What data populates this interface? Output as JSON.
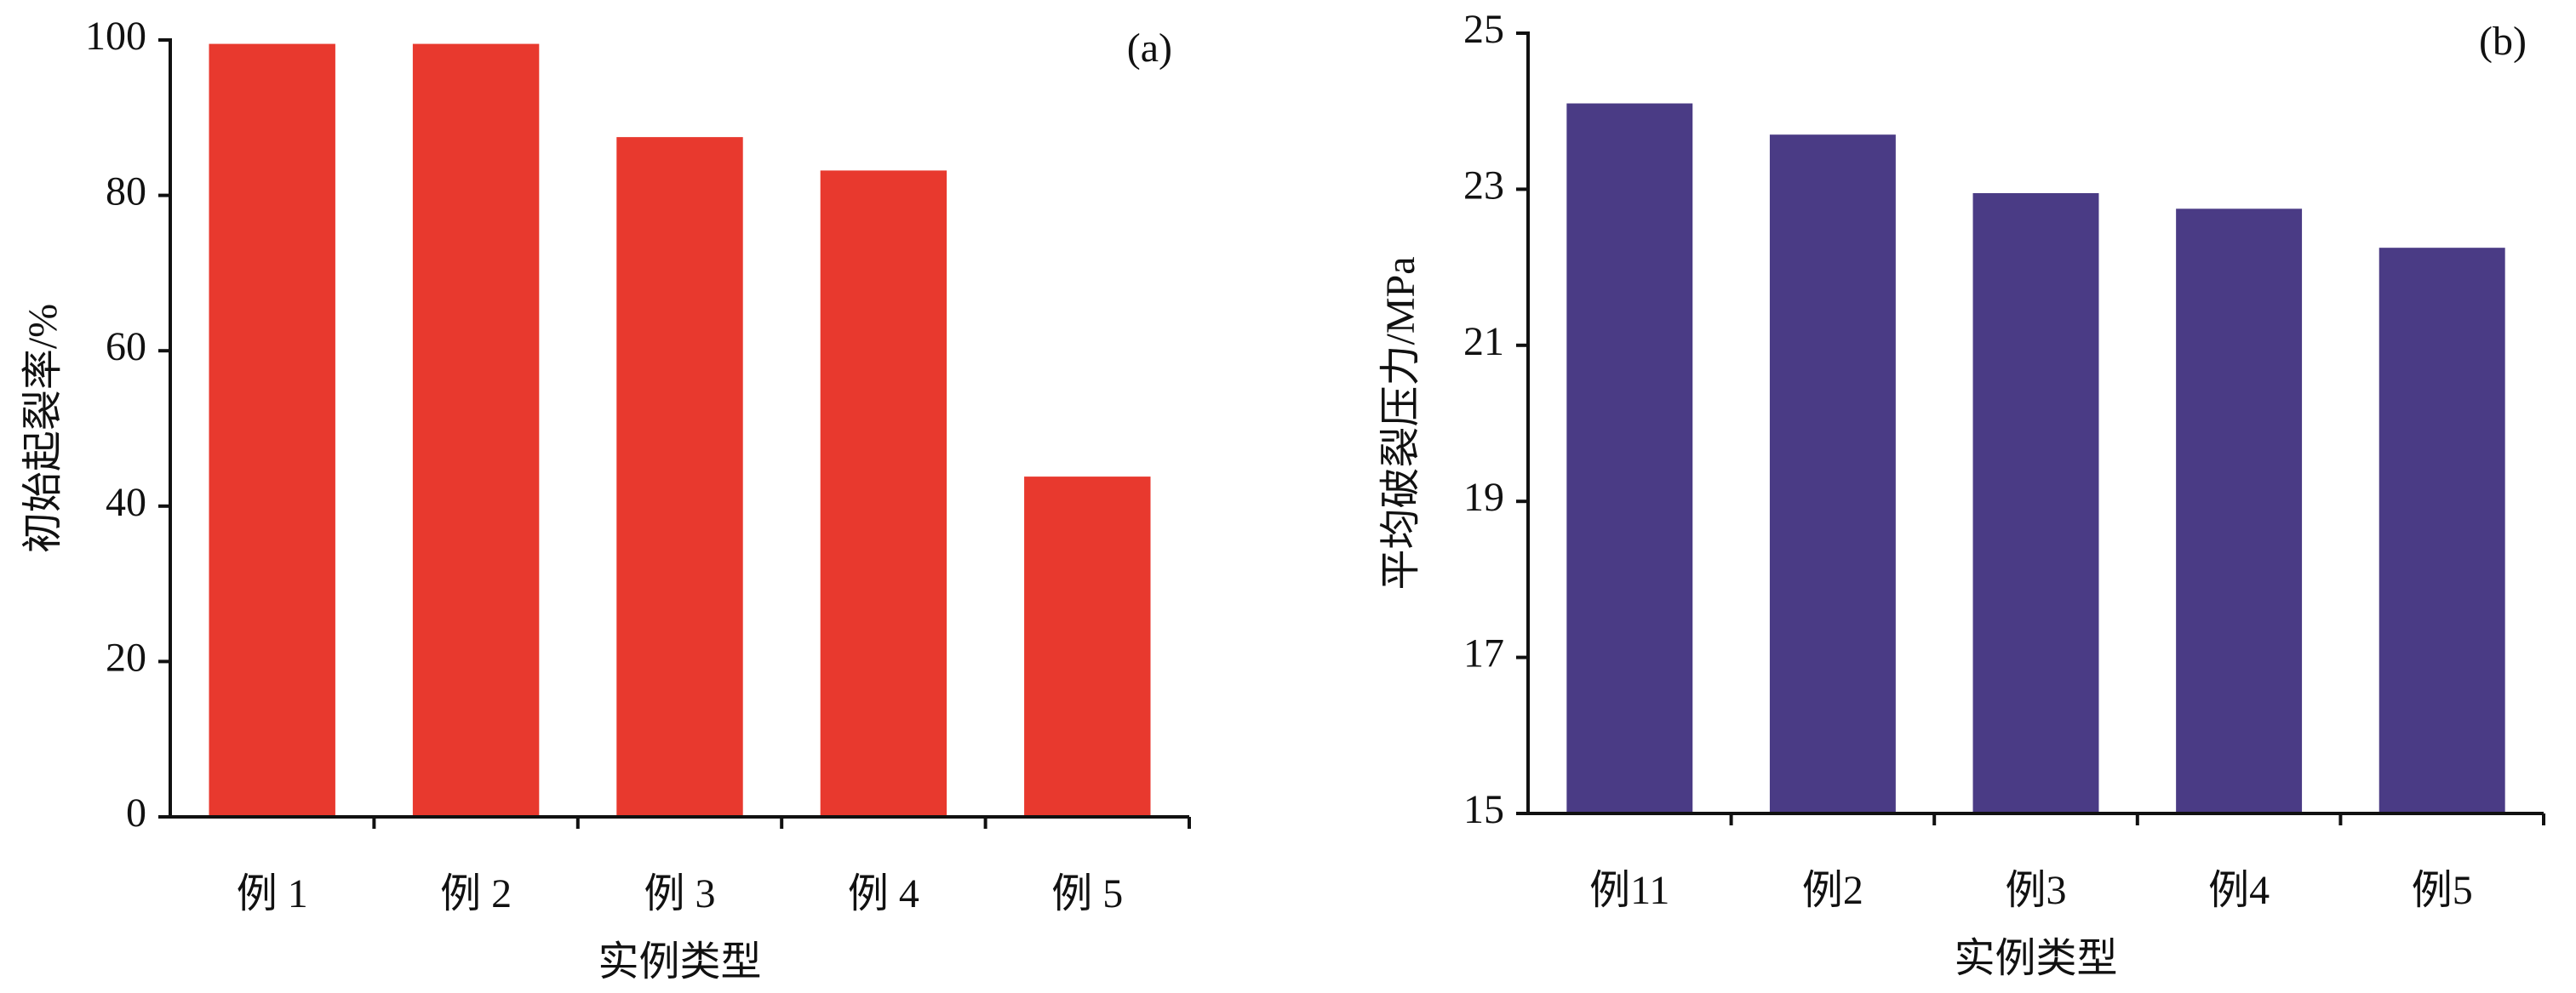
{
  "chart_data": [
    {
      "type": "bar",
      "panel_label": "(a)",
      "y_label": "初始起裂率/%",
      "x_label": "实例类型",
      "categories": [
        "例 1",
        "例 2",
        "例 3",
        "例 4",
        "例 5"
      ],
      "values": [
        99.5,
        99.5,
        87.5,
        83.2,
        43.8
      ],
      "color": "#e8392e",
      "ylim": [
        0,
        100
      ],
      "yticks": [
        0,
        20,
        40,
        60,
        80,
        100
      ]
    },
    {
      "type": "bar",
      "panel_label": "(b)",
      "y_label": "平均破裂压力/MPa",
      "x_label": "实例类型",
      "categories": [
        "例11",
        "例2",
        "例3",
        "例4",
        "例5"
      ],
      "values": [
        24.1,
        23.7,
        22.95,
        22.75,
        22.25
      ],
      "color": "#4a3b85",
      "ylim": [
        15,
        25
      ],
      "yticks": [
        15,
        17,
        19,
        21,
        23,
        25
      ]
    }
  ]
}
